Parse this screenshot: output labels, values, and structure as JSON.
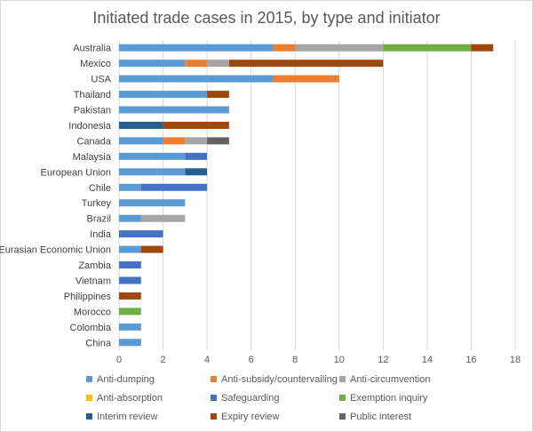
{
  "chart_data": {
    "type": "bar",
    "orientation": "horizontal",
    "stacked": true,
    "title": "Initiated trade cases in 2015, by type and initiator",
    "xlabel": "",
    "ylabel": "",
    "xlim": [
      0,
      18
    ],
    "xticks": [
      "0",
      "2",
      "4",
      "6",
      "8",
      "10",
      "12",
      "14",
      "16",
      "18"
    ],
    "grid": true,
    "legend_position": "bottom",
    "categories": [
      "Australia",
      "Mexico",
      "USA",
      "Thailand",
      "Pakistan",
      "Indonesia",
      "Canada",
      "Malaysia",
      "European Union",
      "Chile",
      "Turkey",
      "Brazil",
      "India",
      "Eurasian Economic Union",
      "Zambia",
      "Vietnam",
      "Philippines",
      "Morocco",
      "Colombia",
      "China"
    ],
    "series": [
      {
        "name": "Anti-dumping",
        "color": "#5b9bd5",
        "values": [
          7,
          3,
          7,
          4,
          5,
          0,
          2,
          3,
          3,
          1,
          3,
          1,
          0,
          1,
          0,
          0,
          0,
          0,
          1,
          1
        ]
      },
      {
        "name": "Anti-subsidy/countervailing",
        "color": "#ed7d31",
        "values": [
          1,
          1,
          3,
          0,
          0,
          0,
          1,
          0,
          0,
          0,
          0,
          0,
          0,
          0,
          0,
          0,
          0,
          0,
          0,
          0
        ]
      },
      {
        "name": "Anti-circumvention",
        "color": "#a5a5a5",
        "values": [
          4,
          1,
          0,
          0,
          0,
          0,
          1,
          0,
          0,
          0,
          0,
          2,
          0,
          0,
          0,
          0,
          0,
          0,
          0,
          0
        ]
      },
      {
        "name": "Anti-absorption",
        "color": "#ffc000",
        "values": [
          0,
          0,
          0,
          0,
          0,
          0,
          0,
          0,
          0,
          0,
          0,
          0,
          0,
          0,
          0,
          0,
          0,
          0,
          0,
          0
        ]
      },
      {
        "name": "Safeguarding",
        "color": "#4472c4",
        "values": [
          0,
          0,
          0,
          0,
          0,
          0,
          0,
          1,
          0,
          3,
          0,
          0,
          2,
          0,
          1,
          1,
          0,
          0,
          0,
          0
        ]
      },
      {
        "name": "Exemption inquiry",
        "color": "#70ad47",
        "values": [
          4,
          0,
          0,
          0,
          0,
          0,
          0,
          0,
          0,
          0,
          0,
          0,
          0,
          0,
          0,
          0,
          0,
          1,
          0,
          0
        ]
      },
      {
        "name": "Interim  review",
        "color": "#255e91",
        "values": [
          0,
          0,
          0,
          0,
          0,
          2,
          0,
          0,
          1,
          0,
          0,
          0,
          0,
          0,
          0,
          0,
          0,
          0,
          0,
          0
        ]
      },
      {
        "name": "Expiry review",
        "color": "#9e480e",
        "values": [
          1,
          7,
          0,
          1,
          0,
          3,
          0,
          0,
          0,
          0,
          0,
          0,
          0,
          1,
          0,
          0,
          1,
          0,
          0,
          0
        ]
      },
      {
        "name": "Public interest",
        "color": "#636363",
        "values": [
          0,
          0,
          0,
          0,
          0,
          0,
          1,
          0,
          0,
          0,
          0,
          0,
          0,
          0,
          0,
          0,
          0,
          0,
          0,
          0
        ]
      }
    ]
  }
}
